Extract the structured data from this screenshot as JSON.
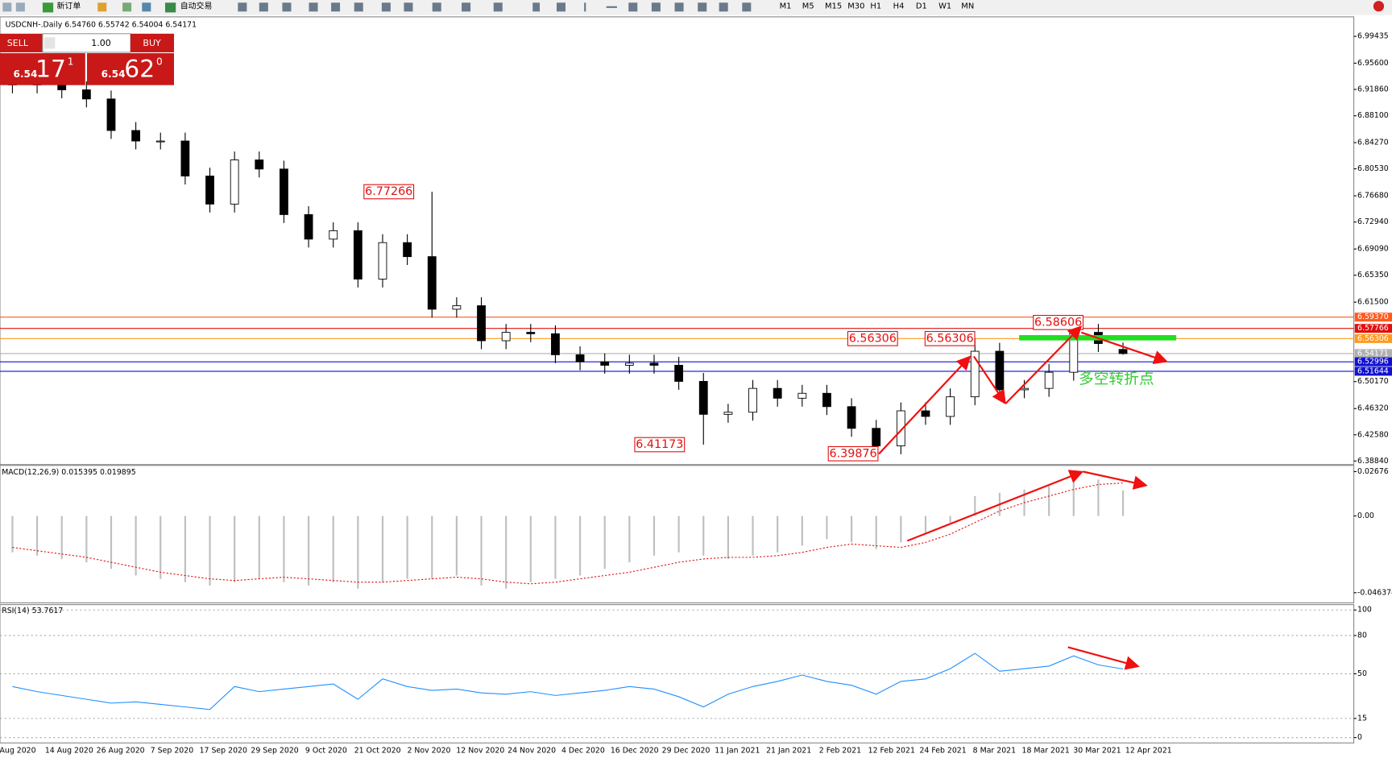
{
  "toolbar": {
    "new_order": "新订单",
    "auto_trading": "自动交易",
    "timeframes": [
      "M1",
      "M5",
      "M15",
      "M30",
      "H1",
      "H4",
      "D1",
      "W1",
      "MN"
    ]
  },
  "trade_panel": {
    "sell": "SELL",
    "buy": "BUY",
    "lots": "1.00",
    "bid_big": "6.54",
    "bid_main": "17",
    "bid_sup": "1",
    "ask_big": "6.54",
    "ask_main": "62",
    "ask_sup": "0"
  },
  "chart_data": [
    {
      "type": "candlestick",
      "title": "USDCNH-.Daily  6.54760 6.55742 6.54004 6.54171",
      "xtick_labels": [
        "Aug 2020",
        "14 Aug 2020",
        "26 Aug 2020",
        "7 Sep 2020",
        "17 Sep 2020",
        "29 Sep 2020",
        "9 Oct 2020",
        "21 Oct 2020",
        "2 Nov 2020",
        "12 Nov 2020",
        "24 Nov 2020",
        "4 Dec 2020",
        "16 Dec 2020",
        "29 Dec 2020",
        "11 Jan 2021",
        "21 Jan 2021",
        "2 Feb 2021",
        "12 Feb 2021",
        "24 Feb 2021",
        "8 Mar 2021",
        "18 Mar 2021",
        "30 Mar 2021",
        "12 Apr 2021"
      ],
      "open": [
        6.93,
        6.925,
        6.928,
        6.918,
        6.905,
        6.86,
        6.845,
        6.845,
        6.795,
        6.755,
        6.818,
        6.805,
        6.74,
        6.705,
        6.717,
        6.648,
        6.7,
        6.68,
        6.605,
        6.61,
        6.56,
        6.572,
        6.57,
        6.54,
        6.53,
        6.525,
        6.528,
        6.525,
        6.502,
        6.455,
        6.458,
        6.492,
        6.478,
        6.485,
        6.466,
        6.435,
        6.41,
        6.46,
        6.452,
        6.48,
        6.545,
        6.49,
        6.492,
        6.515,
        6.572,
        6.5476
      ],
      "high": [
        6.942,
        6.94,
        6.94,
        6.93,
        6.917,
        6.872,
        6.857,
        6.857,
        6.807,
        6.83,
        6.83,
        6.817,
        6.752,
        6.729,
        6.729,
        6.712,
        6.712,
        6.77266,
        6.622,
        6.622,
        6.584,
        6.584,
        6.582,
        6.552,
        6.542,
        6.54,
        6.54,
        6.537,
        6.514,
        6.47,
        6.504,
        6.504,
        6.497,
        6.497,
        6.478,
        6.447,
        6.472,
        6.472,
        6.492,
        6.56306,
        6.557,
        6.504,
        6.527,
        6.58606,
        6.584,
        6.55742
      ],
      "low": [
        6.913,
        6.913,
        6.906,
        6.893,
        6.848,
        6.833,
        6.833,
        6.783,
        6.743,
        6.743,
        6.793,
        6.728,
        6.693,
        6.693,
        6.636,
        6.636,
        6.668,
        6.593,
        6.593,
        6.548,
        6.548,
        6.558,
        6.528,
        6.518,
        6.513,
        6.513,
        6.513,
        6.49,
        6.41173,
        6.443,
        6.446,
        6.466,
        6.466,
        6.454,
        6.423,
        6.39876,
        6.398,
        6.44,
        6.44,
        6.468,
        6.478,
        6.478,
        6.48,
        6.503,
        6.544,
        6.54004
      ],
      "close": [
        6.925,
        6.928,
        6.918,
        6.905,
        6.86,
        6.845,
        6.845,
        6.795,
        6.755,
        6.818,
        6.805,
        6.74,
        6.705,
        6.717,
        6.648,
        6.7,
        6.68,
        6.605,
        6.61,
        6.56,
        6.572,
        6.57,
        6.54,
        6.53,
        6.525,
        6.528,
        6.525,
        6.502,
        6.455,
        6.458,
        6.492,
        6.478,
        6.485,
        6.466,
        6.435,
        6.41,
        6.46,
        6.452,
        6.48,
        6.545,
        6.49,
        6.492,
        6.515,
        6.572,
        6.556,
        6.54171
      ],
      "ylim": [
        6.3846,
        7.0209
      ],
      "yticks": [
        6.99435,
        {
          "value": 6.956,
          "label": "6.95600"
        },
        {
          "value": 6.9186,
          "label": "6.91860"
        },
        {
          "value": 6.881,
          "label": "6.88100"
        },
        {
          "value": 6.8427,
          "label": "6.84270"
        },
        {
          "value": 6.8053,
          "label": "6.80530"
        },
        {
          "value": 6.7668,
          "label": "6.76680"
        },
        {
          "value": 6.7294,
          "label": "6.72940"
        },
        {
          "value": 6.6909,
          "label": "6.69090"
        },
        {
          "value": 6.6535,
          "label": "6.65350"
        },
        {
          "value": 6.615,
          "label": "6.61500"
        },
        {
          "value": 6.5017,
          "label": "6.50170"
        },
        {
          "value": 6.4632,
          "label": "6.46320"
        },
        {
          "value": 6.4258,
          "label": "6.42580"
        },
        {
          "value": 6.3884,
          "label": "6.38840"
        }
      ],
      "levels": [
        {
          "value": 6.5937,
          "label": "6.59370",
          "color": "#ff5a1e"
        },
        {
          "value": 6.57766,
          "label": "6.57766",
          "color": "#e01010"
        },
        {
          "value": 6.56306,
          "label": "6.56306",
          "color": "#ff9a1e"
        },
        {
          "value": 6.54171,
          "label": "6.54171",
          "color": "#b0b0b0"
        },
        {
          "value": 6.52996,
          "label": "6.52996",
          "color": "#1010d0"
        },
        {
          "value": 6.51644,
          "label": "6.51644",
          "color": "#1010d0"
        }
      ],
      "annotations": [
        6.77266,
        6.41173,
        6.39876,
        6.56306,
        6.56306,
        6.58606
      ],
      "note": "多空转折点"
    },
    {
      "type": "macd",
      "title": "MACD(12,26,9) 0.015395 0.019895",
      "values": [
        -0.022,
        -0.024,
        -0.026,
        -0.028,
        -0.032,
        -0.036,
        -0.038,
        -0.04,
        -0.042,
        -0.04,
        -0.038,
        -0.04,
        -0.042,
        -0.04,
        -0.044,
        -0.04,
        -0.038,
        -0.038,
        -0.036,
        -0.042,
        -0.044,
        -0.04,
        -0.038,
        -0.036,
        -0.032,
        -0.028,
        -0.024,
        -0.022,
        -0.024,
        -0.026,
        -0.024,
        -0.022,
        -0.018,
        -0.014,
        -0.016,
        -0.02,
        -0.016,
        -0.01,
        -0.004,
        0.012,
        0.014,
        0.016,
        0.018,
        0.024,
        0.022,
        0.015395
      ],
      "signal": [
        -0.019,
        -0.021,
        -0.023,
        -0.025,
        -0.028,
        -0.031,
        -0.034,
        -0.036,
        -0.038,
        -0.039,
        -0.038,
        -0.037,
        -0.038,
        -0.039,
        -0.04,
        -0.04,
        -0.039,
        -0.038,
        -0.037,
        -0.038,
        -0.04,
        -0.041,
        -0.04,
        -0.038,
        -0.036,
        -0.034,
        -0.031,
        -0.028,
        -0.026,
        -0.025,
        -0.025,
        -0.024,
        -0.022,
        -0.019,
        -0.017,
        -0.018,
        -0.019,
        -0.016,
        -0.011,
        -0.004,
        0.003,
        0.008,
        0.012,
        0.016,
        0.019,
        0.019895
      ],
      "color": "#c0c0c0",
      "signal_color": "#e01010",
      "ylim": [
        -0.0525,
        0.0305
      ],
      "yticks": [
        0.02676,
        {
          "value": 0,
          "label": "0.00"
        },
        -0.046374
      ]
    },
    {
      "type": "line",
      "title": "RSI(14) 53.7617",
      "values": [
        40,
        36,
        33,
        30,
        27,
        28,
        26,
        24,
        22,
        40,
        36,
        38,
        40,
        42,
        30,
        46,
        40,
        37,
        38,
        35,
        34,
        36,
        33,
        35,
        37,
        40,
        38,
        32,
        24,
        34,
        40,
        44,
        49,
        44,
        41,
        34,
        44,
        46,
        54,
        66,
        52,
        54,
        56,
        64,
        57,
        53.7617
      ],
      "color": "#1e90ff",
      "ylim": [
        -4.2,
        104.2
      ],
      "yticks": [
        100,
        80,
        50,
        15,
        0
      ],
      "grid": true
    }
  ]
}
